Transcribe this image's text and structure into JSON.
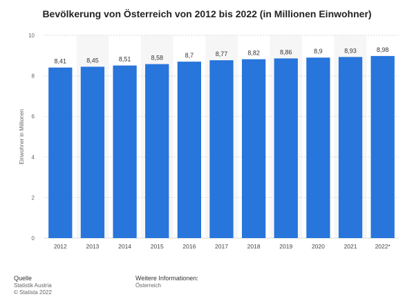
{
  "title": "Bevölkerung von Österreich von 2012 bis 2022 (in Millionen Einwohner)",
  "footer": {
    "source_heading": "Quelle",
    "source_line1": "Statistik Austria",
    "source_line2": "© Statista 2022",
    "info_heading": "Weitere Informationen:",
    "info_line1": "Österreich"
  },
  "colors": {
    "bar": "#2875db",
    "band": "#f6f6f6",
    "grid": "#d9d9d9"
  },
  "chart_data": {
    "type": "bar",
    "categories": [
      "2012",
      "2013",
      "2014",
      "2015",
      "2016",
      "2017",
      "2018",
      "2019",
      "2020",
      "2021",
      "2022*"
    ],
    "values": [
      8.41,
      8.45,
      8.51,
      8.58,
      8.7,
      8.77,
      8.82,
      8.86,
      8.9,
      8.93,
      8.98
    ],
    "value_labels": [
      "8,41",
      "8,45",
      "8,51",
      "8,58",
      "8,7",
      "8,77",
      "8,82",
      "8,86",
      "8,9",
      "8,93",
      "8,98"
    ],
    "ylabel": "Einwohner in Millionen",
    "ylim": [
      0,
      10
    ],
    "yticks": [
      0,
      2,
      4,
      6,
      8,
      10
    ],
    "ytick_labels": [
      "0",
      "2",
      "4",
      "6",
      "8",
      "10"
    ],
    "grid": true,
    "legend": "none"
  }
}
